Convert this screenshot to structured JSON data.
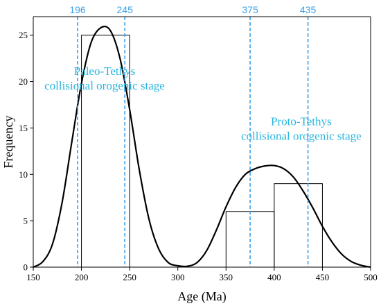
{
  "chart_data": {
    "type": "bar",
    "title": "",
    "xlabel": "Age (Ma)",
    "ylabel": "Frequency",
    "xlim": [
      150,
      500
    ],
    "ylim": [
      0,
      27
    ],
    "xticks": [
      150,
      200,
      250,
      300,
      350,
      400,
      450,
      500
    ],
    "yticks": [
      0,
      5,
      10,
      15,
      20,
      25
    ],
    "grid": false,
    "histogram": {
      "bins": [
        {
          "x0": 200,
          "x1": 250,
          "count": 25
        },
        {
          "x0": 350,
          "x1": 400,
          "count": 6
        },
        {
          "x0": 400,
          "x1": 450,
          "count": 9
        }
      ]
    },
    "density_curve": {
      "points": [
        [
          150,
          0
        ],
        [
          160,
          0.6
        ],
        [
          170,
          2.5
        ],
        [
          180,
          7.0
        ],
        [
          190,
          13.5
        ],
        [
          200,
          19.8
        ],
        [
          210,
          24.2
        ],
        [
          220,
          25.8
        ],
        [
          230,
          25.5
        ],
        [
          240,
          22.5
        ],
        [
          250,
          17.0
        ],
        [
          260,
          10.5
        ],
        [
          270,
          5.2
        ],
        [
          280,
          2.0
        ],
        [
          290,
          0.5
        ],
        [
          300,
          0.15
        ],
        [
          310,
          0.1
        ],
        [
          320,
          0.5
        ],
        [
          330,
          1.8
        ],
        [
          340,
          4.0
        ],
        [
          350,
          6.5
        ],
        [
          360,
          8.6
        ],
        [
          370,
          10.0
        ],
        [
          380,
          10.6
        ],
        [
          390,
          10.9
        ],
        [
          400,
          10.95
        ],
        [
          410,
          10.6
        ],
        [
          420,
          9.7
        ],
        [
          430,
          8.2
        ],
        [
          440,
          6.4
        ],
        [
          450,
          4.4
        ],
        [
          460,
          2.7
        ],
        [
          470,
          1.4
        ],
        [
          480,
          0.6
        ],
        [
          490,
          0.2
        ],
        [
          500,
          0
        ]
      ]
    },
    "reference_lines": [
      {
        "label": "196",
        "value": 196
      },
      {
        "label": "245",
        "value": 245
      },
      {
        "label": "375",
        "value": 375
      },
      {
        "label": "435",
        "value": 435
      }
    ],
    "annotations": [
      {
        "lines": [
          "Paleo-Tethys",
          "collisional orogenic stage"
        ],
        "x": 224,
        "y": 20.7
      },
      {
        "lines": [
          "Proto-Tethys",
          "collisional orogenic stage"
        ],
        "x": 428,
        "y": 15.3
      }
    ],
    "colors": {
      "reference": "#3aa0ea",
      "annotation": "#2bb6dd",
      "bars": "#000000",
      "curve": "#000000"
    }
  }
}
